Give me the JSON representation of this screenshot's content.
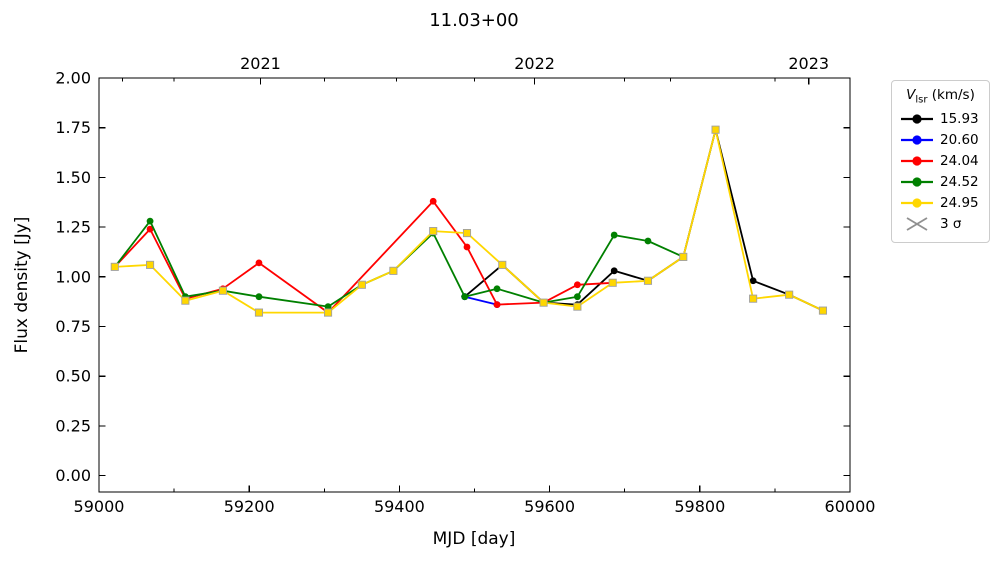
{
  "figure": {
    "title": "11.03+00"
  },
  "legend": {
    "title_var": "V",
    "title_sub": "lsr",
    "title_unit": " (km/s)",
    "entries": [
      {
        "label": "15.93",
        "color": "#000000",
        "marker": "circle"
      },
      {
        "label": "20.60",
        "color": "#0000ff",
        "marker": "circle"
      },
      {
        "label": "24.04",
        "color": "#ff0000",
        "marker": "circle"
      },
      {
        "label": "24.52",
        "color": "#008000",
        "marker": "circle"
      },
      {
        "label": "24.95",
        "color": "#ffd700",
        "marker": "circle"
      }
    ],
    "sigma_label": "3 σ",
    "sigma_color": "#909090",
    "sigma_marker": "x"
  },
  "chart_data": {
    "type": "line",
    "title": "11.03+00",
    "xlabel": "MJD [day]",
    "ylabel": "Flux density [Jy]",
    "xlim": [
      59000,
      60000
    ],
    "ylim": [
      -0.0825,
      2.0
    ],
    "grid": false,
    "legend_position": "outside-top-right",
    "x_ticks": [
      {
        "v": 59000,
        "label": "59000"
      },
      {
        "v": 59200,
        "label": "59200"
      },
      {
        "v": 59400,
        "label": "59400"
      },
      {
        "v": 59600,
        "label": "59600"
      },
      {
        "v": 59800,
        "label": "59800"
      },
      {
        "v": 60000,
        "label": "60000"
      }
    ],
    "x_minor_ticks": [
      59100,
      59300,
      59500,
      59700,
      59900
    ],
    "y_ticks": [
      {
        "v": 0.0,
        "label": "0.00"
      },
      {
        "v": 0.25,
        "label": "0.25"
      },
      {
        "v": 0.5,
        "label": "0.50"
      },
      {
        "v": 0.75,
        "label": "0.75"
      },
      {
        "v": 1.0,
        "label": "1.00"
      },
      {
        "v": 1.25,
        "label": "1.25"
      },
      {
        "v": 1.5,
        "label": "1.50"
      },
      {
        "v": 1.75,
        "label": "1.75"
      },
      {
        "v": 2.0,
        "label": "2.00"
      }
    ],
    "top_axis": {
      "ticks": [
        {
          "v": 59215,
          "label": "2021"
        },
        {
          "v": 59580,
          "label": "2022"
        },
        {
          "v": 59945,
          "label": "2023"
        }
      ],
      "minor_ticks": [
        59031,
        59396,
        59761
      ]
    },
    "series": [
      {
        "name": "15.93",
        "color": "#000000",
        "marker": "circle",
        "points": [
          [
            59487,
            0.9
          ],
          [
            59537,
            1.06
          ],
          [
            59592,
            0.87
          ],
          [
            59637,
            0.86
          ],
          [
            59686,
            1.03
          ],
          [
            59731,
            0.98
          ],
          [
            59778,
            1.1
          ],
          [
            59821,
            1.74
          ],
          [
            59871,
            0.98
          ],
          [
            59919,
            0.91
          ],
          [
            59964,
            0.83
          ]
        ]
      },
      {
        "name": "20.60",
        "color": "#0000ff",
        "marker": "circle",
        "points": [
          [
            59487,
            0.9
          ],
          [
            59530,
            0.86
          ]
        ]
      },
      {
        "name": "24.04",
        "color": "#ff0000",
        "marker": "circle",
        "points": [
          [
            59021,
            1.05
          ],
          [
            59068,
            1.24
          ],
          [
            59115,
            0.89
          ],
          [
            59165,
            0.94
          ],
          [
            59213,
            1.07
          ],
          [
            59305,
            0.82
          ],
          [
            59445,
            1.38
          ],
          [
            59490,
            1.15
          ],
          [
            59530,
            0.86
          ],
          [
            59592,
            0.87
          ],
          [
            59637,
            0.96
          ],
          [
            59684,
            0.97
          ]
        ]
      },
      {
        "name": "24.52",
        "color": "#008000",
        "marker": "circle",
        "points": [
          [
            59021,
            1.05
          ],
          [
            59068,
            1.28
          ],
          [
            59115,
            0.9
          ],
          [
            59165,
            0.93
          ],
          [
            59213,
            0.9
          ],
          [
            59305,
            0.85
          ],
          [
            59350,
            0.96
          ],
          [
            59392,
            1.03
          ],
          [
            59445,
            1.22
          ],
          [
            59487,
            0.9
          ],
          [
            59530,
            0.94
          ],
          [
            59592,
            0.87
          ],
          [
            59637,
            0.9
          ],
          [
            59686,
            1.21
          ],
          [
            59731,
            1.18
          ],
          [
            59778,
            1.1
          ]
        ]
      },
      {
        "name": "24.95",
        "color": "#ffd700",
        "marker": "square",
        "marker_edge": "#a0a0a0",
        "points": [
          [
            59021,
            1.05
          ],
          [
            59068,
            1.06
          ],
          [
            59115,
            0.88
          ],
          [
            59165,
            0.93
          ],
          [
            59213,
            0.82
          ],
          [
            59305,
            0.82
          ],
          [
            59350,
            0.96
          ],
          [
            59392,
            1.03
          ],
          [
            59445,
            1.23
          ],
          [
            59490,
            1.22
          ],
          [
            59537,
            1.06
          ],
          [
            59592,
            0.87
          ],
          [
            59637,
            0.85
          ],
          [
            59684,
            0.97
          ],
          [
            59731,
            0.98
          ],
          [
            59778,
            1.1
          ],
          [
            59821,
            1.74
          ],
          [
            59871,
            0.89
          ],
          [
            59919,
            0.91
          ],
          [
            59964,
            0.83
          ]
        ]
      }
    ]
  }
}
